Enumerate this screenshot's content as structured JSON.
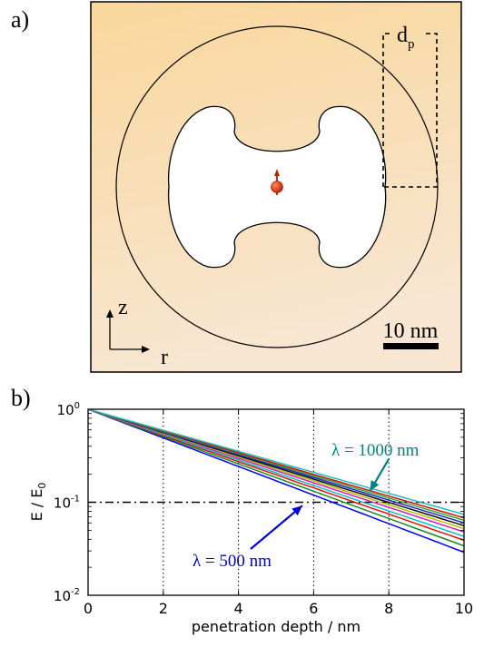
{
  "panel_a": {
    "label": "a)",
    "depth_label": "d",
    "depth_label_sub": "p",
    "axis_z_label": "z",
    "axis_r_label": "r",
    "scale_bar_label": "10 nm"
  },
  "panel_b": {
    "label": "b)"
  },
  "chart_data": {
    "type": "line",
    "title": "",
    "xlabel": "penetration depth / nm",
    "ylabel": "E / E",
    "ylabel_sub": "0",
    "xlim": [
      0,
      10
    ],
    "ylim": [
      0.01,
      1
    ],
    "yscale": "log",
    "grid": "vertical dotted at x = 2, 4, 6, 8",
    "x_ticks": [
      "0",
      "2",
      "4",
      "6",
      "8",
      "10"
    ],
    "y_ticks": [
      {
        "value": 1,
        "base": "10",
        "exp": "0"
      },
      {
        "value": 0.1,
        "base": "10",
        "exp": "-1"
      },
      {
        "value": 0.01,
        "base": "10",
        "exp": "-2"
      }
    ],
    "reference_line": {
      "y": 0.1,
      "style": "dash-dot",
      "color": "#000000"
    },
    "x": [
      0,
      10
    ],
    "series": [
      {
        "color": "#0000ee",
        "values": [
          1,
          0.029
        ]
      },
      {
        "color": "#1a8a1a",
        "values": [
          1,
          0.034
        ]
      },
      {
        "color": "#dd1111",
        "values": [
          1,
          0.039
        ]
      },
      {
        "color": "#11bbbb",
        "values": [
          1,
          0.043
        ]
      },
      {
        "color": "#cc22cc",
        "values": [
          1,
          0.048
        ]
      },
      {
        "color": "#bbbb00",
        "values": [
          1,
          0.052
        ]
      },
      {
        "color": "#111111",
        "values": [
          1,
          0.056
        ]
      },
      {
        "color": "#2222cc",
        "values": [
          1,
          0.06
        ]
      },
      {
        "color": "#33aa33",
        "values": [
          1,
          0.064
        ]
      },
      {
        "color": "#cc1111",
        "values": [
          1,
          0.068
        ]
      },
      {
        "color": "#22bbbb",
        "values": [
          1,
          0.074
        ]
      }
    ],
    "annotations": [
      {
        "text": "λ = 1000 nm",
        "color": "#008080",
        "arrow_to": {
          "x": 7.5,
          "y": 0.132
        }
      },
      {
        "text": "λ = 500 nm",
        "color": "#0000cc",
        "arrow_to": {
          "x": 5.7,
          "y": 0.092
        }
      }
    ]
  }
}
